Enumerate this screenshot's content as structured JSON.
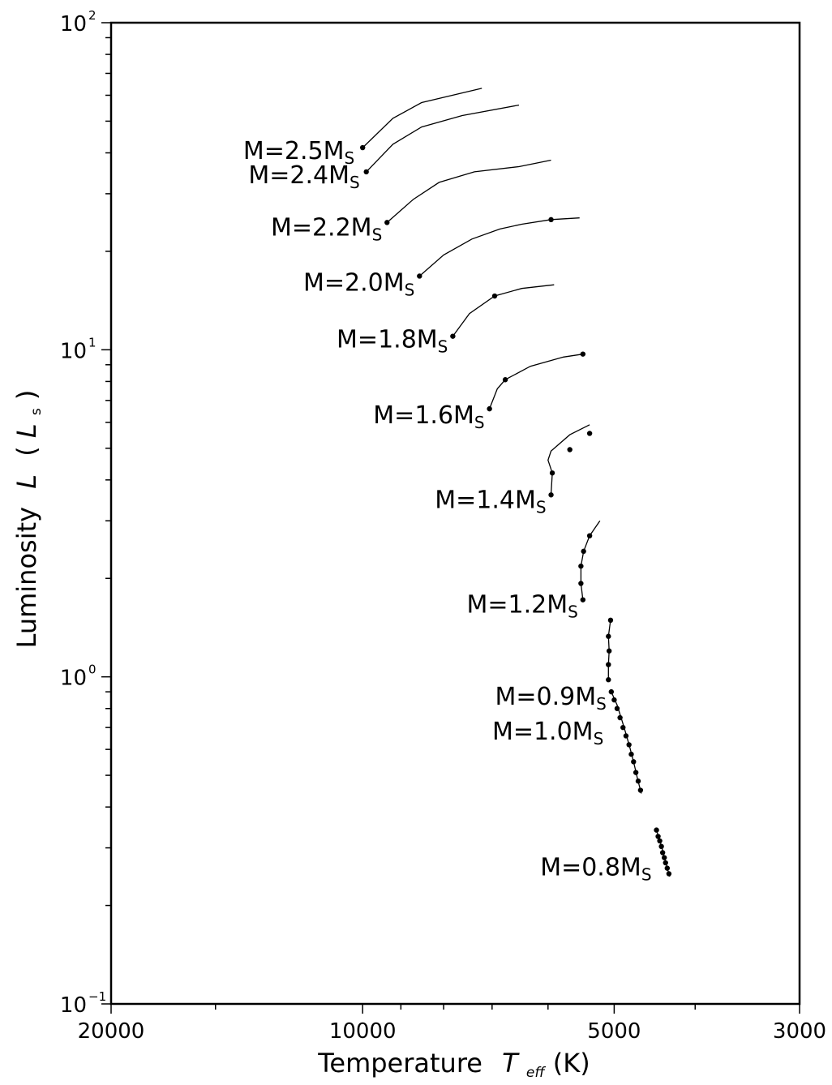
{
  "chart_data": {
    "type": "line",
    "x_axis": {
      "label": "Temperature",
      "symbol": "T",
      "symbol_sub": "eff",
      "unit": "(K)",
      "scale": "log",
      "reversed": true,
      "range": [
        20000,
        3000
      ],
      "tick_labels": [
        "20000",
        "10000",
        "5000",
        "3000"
      ],
      "tick_values": [
        20000,
        10000,
        5000,
        3000
      ],
      "minor_tick_values": [
        15000,
        9000,
        8000,
        7000,
        6000,
        4000
      ]
    },
    "y_axis": {
      "label": "Luminosity",
      "symbol": "L",
      "unit_open": "(",
      "unit_symbol": "L",
      "unit_sub": "s",
      "unit_close": ")",
      "scale": "log",
      "range": [
        0.1,
        100
      ],
      "ticks": [
        {
          "value": 100,
          "base": "10",
          "exp": "2"
        },
        {
          "value": 10,
          "base": "10",
          "exp": "1"
        },
        {
          "value": 1,
          "base": "10",
          "exp": "0"
        },
        {
          "value": 0.1,
          "base": "10",
          "exp": "−1"
        }
      ]
    },
    "grid": false,
    "legend": "none",
    "series": [
      {
        "label": "M=2.5M",
        "label_sub": "S",
        "line": [
          [
            10000,
            41.5
          ],
          [
            9200,
            51
          ],
          [
            8500,
            57
          ],
          [
            7200,
            63
          ]
        ],
        "points": [
          [
            10000,
            41.5
          ]
        ]
      },
      {
        "label": "M=2.4M",
        "label_sub": "S",
        "line": [
          [
            9900,
            35
          ],
          [
            9200,
            42.5
          ],
          [
            8500,
            48
          ],
          [
            7600,
            52
          ],
          [
            6500,
            56
          ]
        ],
        "points": [
          [
            9900,
            35
          ]
        ]
      },
      {
        "label": "M=2.2M",
        "label_sub": "S",
        "line": [
          [
            9350,
            24.5
          ],
          [
            8700,
            28.8
          ],
          [
            8100,
            32.5
          ],
          [
            7350,
            35
          ],
          [
            6500,
            36.3
          ],
          [
            5950,
            38
          ]
        ],
        "points": [
          [
            9350,
            24.5
          ]
        ]
      },
      {
        "label": "M=2.0M",
        "label_sub": "S",
        "line": [
          [
            8550,
            16.8
          ],
          [
            8000,
            19.5
          ],
          [
            7400,
            21.8
          ],
          [
            6850,
            23.4
          ],
          [
            6450,
            24.2
          ],
          [
            5950,
            25
          ],
          [
            5500,
            25.3
          ]
        ],
        "points": [
          [
            8550,
            16.8
          ],
          [
            5950,
            25
          ]
        ]
      },
      {
        "label": "M=1.8M",
        "label_sub": "S",
        "line": [
          [
            7800,
            11
          ],
          [
            7450,
            12.9
          ],
          [
            6950,
            14.6
          ],
          [
            6450,
            15.4
          ],
          [
            5900,
            15.8
          ]
        ],
        "points": [
          [
            7800,
            11
          ],
          [
            6950,
            14.6
          ]
        ]
      },
      {
        "label": "M=1.6M",
        "label_sub": "S",
        "line": [
          [
            7050,
            6.6
          ],
          [
            6900,
            7.6
          ],
          [
            6750,
            8.1
          ],
          [
            6300,
            8.9
          ],
          [
            5750,
            9.5
          ],
          [
            5450,
            9.7
          ]
        ],
        "points": [
          [
            7050,
            6.6
          ],
          [
            6750,
            8.1
          ],
          [
            5450,
            9.7
          ]
        ]
      },
      {
        "label": "M=1.4M",
        "label_sub": "S",
        "line": [
          [
            5950,
            3.6
          ],
          [
            5930,
            4.2
          ],
          [
            6000,
            4.6
          ],
          [
            5950,
            4.9
          ],
          [
            5650,
            5.5
          ],
          [
            5350,
            5.9
          ]
        ],
        "points": [
          [
            5950,
            3.6
          ],
          [
            5930,
            4.2
          ],
          [
            5650,
            4.95
          ],
          [
            5350,
            5.55
          ]
        ]
      },
      {
        "label": "M=1.2M",
        "label_sub": "S",
        "line": [
          [
            5450,
            1.72
          ],
          [
            5480,
            1.93
          ],
          [
            5480,
            2.18
          ],
          [
            5440,
            2.42
          ],
          [
            5350,
            2.7
          ],
          [
            5200,
            3.0
          ]
        ],
        "points": [
          [
            5450,
            1.72
          ],
          [
            5480,
            1.93
          ],
          [
            5480,
            2.18
          ],
          [
            5440,
            2.42
          ],
          [
            5350,
            2.7
          ]
        ]
      },
      {
        "label": "M=1.0M",
        "label_sub": "S",
        "line": [
          [
            5080,
            0.98
          ],
          [
            5080,
            1.09
          ],
          [
            5070,
            1.2
          ],
          [
            5080,
            1.33
          ],
          [
            5050,
            1.49
          ]
        ],
        "points": [
          [
            5080,
            0.98
          ],
          [
            5080,
            1.09
          ],
          [
            5070,
            1.2
          ],
          [
            5080,
            1.33
          ],
          [
            5050,
            1.49
          ]
        ]
      },
      {
        "label": "M=0.9M",
        "label_sub": "S",
        "line": [
          [
            5040,
            0.9
          ],
          [
            4960,
            0.82
          ],
          [
            4890,
            0.73
          ],
          [
            4840,
            0.67
          ],
          [
            4790,
            0.61
          ],
          [
            4740,
            0.55
          ],
          [
            4690,
            0.49
          ],
          [
            4640,
            0.44
          ]
        ],
        "points": [
          [
            5040,
            0.9
          ],
          [
            5000,
            0.85
          ],
          [
            4960,
            0.8
          ],
          [
            4920,
            0.75
          ],
          [
            4880,
            0.7
          ],
          [
            4840,
            0.66
          ],
          [
            4800,
            0.62
          ],
          [
            4770,
            0.58
          ],
          [
            4740,
            0.55
          ],
          [
            4710,
            0.51
          ],
          [
            4680,
            0.48
          ],
          [
            4650,
            0.45
          ]
        ]
      },
      {
        "label": "M=0.8M",
        "label_sub": "S",
        "line": [
          [
            4450,
            0.34
          ],
          [
            4400,
            0.31
          ],
          [
            4360,
            0.285
          ],
          [
            4320,
            0.26
          ],
          [
            4290,
            0.245
          ]
        ],
        "points": [
          [
            4450,
            0.34
          ],
          [
            4430,
            0.325
          ],
          [
            4410,
            0.315
          ],
          [
            4390,
            0.303
          ],
          [
            4375,
            0.29
          ],
          [
            4355,
            0.28
          ],
          [
            4340,
            0.27
          ],
          [
            4320,
            0.26
          ],
          [
            4300,
            0.25
          ]
        ]
      }
    ]
  }
}
